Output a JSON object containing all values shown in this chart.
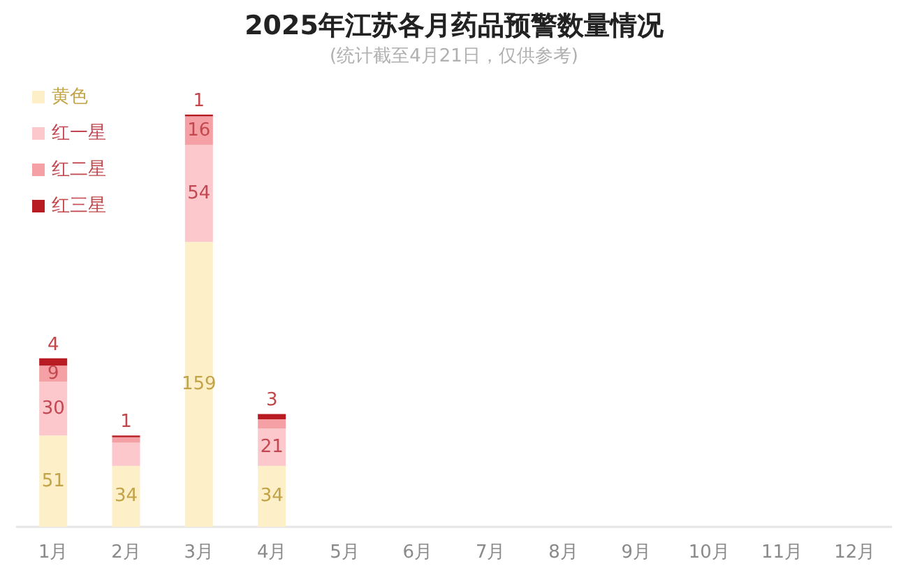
{
  "chart_data": {
    "type": "bar",
    "title": "2025年江苏各月药品预警数量情况",
    "subtitle": "(统计截至4月21日，仅供参考)",
    "categories": [
      "1月",
      "2月",
      "3月",
      "4月",
      "5月",
      "6月",
      "7月",
      "8月",
      "9月",
      "10月",
      "11月",
      "12月"
    ],
    "stacked": true,
    "legend": "top left",
    "series": [
      {
        "name": "黄色",
        "color": "#fdf0c8",
        "values": [
          51,
          34,
          159,
          34,
          null,
          null,
          null,
          null,
          null,
          null,
          null,
          null
        ],
        "value_labels": [
          "51",
          "34",
          "159",
          "34",
          null,
          null,
          null,
          null,
          null,
          null,
          null,
          null
        ]
      },
      {
        "name": "红一星",
        "color": "#fcc8cc",
        "values": [
          30,
          13,
          54,
          21,
          null,
          null,
          null,
          null,
          null,
          null,
          null,
          null
        ],
        "value_labels": [
          "30",
          null,
          "54",
          "21",
          null,
          null,
          null,
          null,
          null,
          null,
          null,
          null
        ]
      },
      {
        "name": "红二星",
        "color": "#f4a0a4",
        "values": [
          9,
          3,
          16,
          5,
          null,
          null,
          null,
          null,
          null,
          null,
          null,
          null
        ],
        "value_labels": [
          "9",
          null,
          "16",
          null,
          null,
          null,
          null,
          null,
          null,
          null,
          null,
          null
        ]
      },
      {
        "name": "红三星",
        "color": "#b81c22",
        "values": [
          4,
          1,
          1,
          3,
          null,
          null,
          null,
          null,
          null,
          null,
          null,
          null
        ],
        "value_labels": [
          "4",
          "1",
          "1",
          "3",
          null,
          null,
          null,
          null,
          null,
          null,
          null,
          null
        ]
      }
    ]
  }
}
